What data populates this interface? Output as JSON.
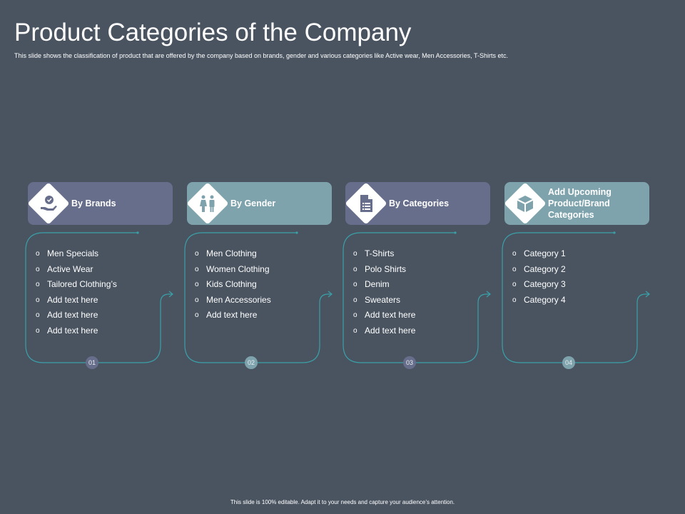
{
  "title": "Product Categories of the Company",
  "subtitle": "This slide shows the classification of product that are offered by the company based on brands, gender and various categories like Active wear, Men Accessories, T-Shirts etc.",
  "footer": "This slide is 100% editable. Adapt it to your needs and capture your audience’s attention.",
  "colors": {
    "background": "#4a5461",
    "card_purple": "#676e8b",
    "card_teal": "#7ea3ad",
    "line": "#3aa0a8"
  },
  "columns": [
    {
      "label": "By Brands",
      "icon": "hand-badge-icon",
      "color": "purple",
      "number": "01",
      "items": [
        "Men Specials",
        "Active Wear",
        "Tailored Clothing’s",
        "Add text here",
        "Add text here",
        "Add text here"
      ]
    },
    {
      "label": "By Gender",
      "icon": "man-woman-icon",
      "color": "teal",
      "number": "02",
      "items": [
        "Men Clothing",
        "Women Clothing",
        "Kids Clothing",
        "Men Accessories",
        "Add text here"
      ]
    },
    {
      "label": "By Categories",
      "icon": "document-list-icon",
      "color": "purple",
      "number": "03",
      "items": [
        "T-Shirts",
        "Polo Shirts",
        "Denim",
        "Sweaters",
        "Add text here",
        "Add text here"
      ]
    },
    {
      "label": "Add Upcoming Product/Brand Categories",
      "icon": "box-icon",
      "color": "teal",
      "number": "04",
      "items": [
        "Category 1",
        "Category 2",
        "Category 3",
        "Category 4"
      ]
    }
  ]
}
